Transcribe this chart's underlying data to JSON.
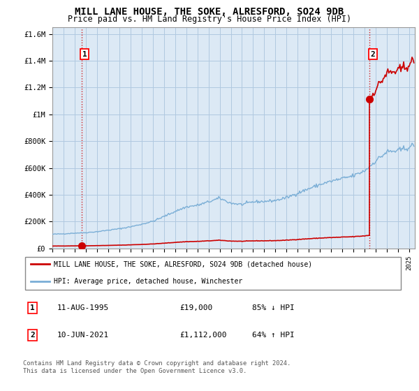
{
  "title": "MILL LANE HOUSE, THE SOKE, ALRESFORD, SO24 9DB",
  "subtitle": "Price paid vs. HM Land Registry's House Price Index (HPI)",
  "title_fontsize": 10,
  "subtitle_fontsize": 8.5,
  "ylabel_ticks": [
    "£0",
    "£200K",
    "£400K",
    "£600K",
    "£800K",
    "£1M",
    "£1.2M",
    "£1.4M",
    "£1.6M"
  ],
  "ytick_values": [
    0,
    200000,
    400000,
    600000,
    800000,
    1000000,
    1200000,
    1400000,
    1600000
  ],
  "ylim": [
    0,
    1650000
  ],
  "xlim_start": 1993.0,
  "xlim_end": 2025.5,
  "sale1_year": 1995.6,
  "sale1_value": 19000,
  "sale2_year": 2021.44,
  "sale2_value": 1112000,
  "house_color": "#cc0000",
  "hpi_color": "#7aaed6",
  "bg_color": "#dce9f5",
  "grid_color": "#b0c8e0",
  "annotation1": "11-AUG-1995",
  "annotation1_price": "£19,000",
  "annotation1_hpi": "85% ↓ HPI",
  "annotation2": "10-JUN-2021",
  "annotation2_price": "£1,112,000",
  "annotation2_hpi": "64% ↑ HPI",
  "legend_line1": "MILL LANE HOUSE, THE SOKE, ALRESFORD, SO24 9DB (detached house)",
  "legend_line2": "HPI: Average price, detached house, Winchester",
  "footer": "Contains HM Land Registry data © Crown copyright and database right 2024.\nThis data is licensed under the Open Government Licence v3.0.",
  "font_family": "monospace"
}
